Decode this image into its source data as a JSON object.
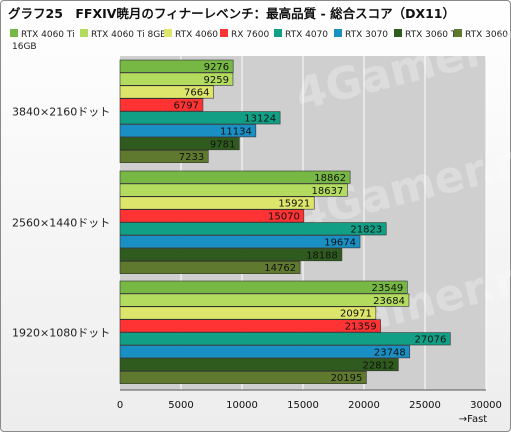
{
  "chart_data": {
    "type": "bar",
    "orientation": "horizontal",
    "title": "グラフ25　FFXIV暁月のフィナーレベンチ：最高品質 - 総合スコア（DX11）",
    "categories": [
      "3840×2160ドット",
      "2560×1440ドット",
      "1920×1080ドット"
    ],
    "series": [
      {
        "name": "RTX 4060 Ti",
        "color": "#76b843",
        "values": [
          9276,
          18862,
          23549
        ]
      },
      {
        "name": "RTX 4060 Ti 8GB",
        "color": "#b3dc5f",
        "values": [
          9259,
          18637,
          23684
        ]
      },
      {
        "name": "RTX 4060",
        "color": "#dde56a",
        "values": [
          7664,
          15921,
          20971
        ]
      },
      {
        "name": "RX 7600",
        "color": "#ff3333",
        "values": [
          6797,
          15070,
          21359
        ]
      },
      {
        "name": "RTX 4070",
        "color": "#11a085",
        "values": [
          13124,
          21823,
          27076
        ]
      },
      {
        "name": "RTX 3070",
        "color": "#1a8fc4",
        "values": [
          11134,
          19674,
          23748
        ]
      },
      {
        "name": "RTX 3060 Ti",
        "color": "#2f5c1e",
        "values": [
          9781,
          18188,
          22812
        ]
      },
      {
        "name": "RTX 3060 16GB",
        "color": "#5f7a2e",
        "values": [
          7233,
          14762,
          20195
        ]
      }
    ],
    "xlim": [
      0,
      30000
    ],
    "xticks": [
      0,
      5000,
      10000,
      15000,
      20000,
      25000,
      30000
    ],
    "xlabel": "→Fast",
    "grid": true,
    "legend_position": "top",
    "watermark": "4Gamer.net"
  }
}
